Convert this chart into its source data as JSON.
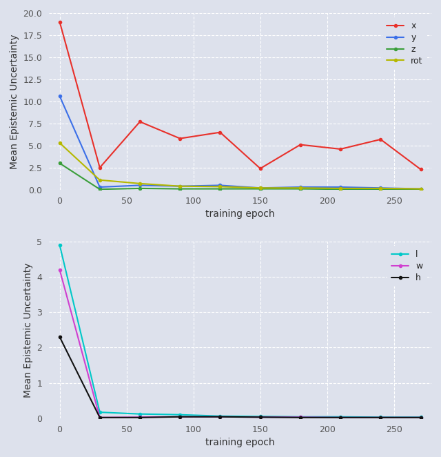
{
  "top": {
    "epochs": [
      0,
      30,
      60,
      90,
      120,
      150,
      180,
      210,
      240,
      270
    ],
    "x": [
      19.0,
      2.5,
      7.7,
      5.8,
      6.5,
      2.4,
      5.1,
      4.6,
      5.7,
      2.3
    ],
    "y": [
      10.6,
      0.3,
      0.5,
      0.4,
      0.5,
      0.2,
      0.3,
      0.3,
      0.2,
      0.1
    ],
    "z": [
      3.0,
      0.05,
      0.15,
      0.1,
      0.1,
      0.1,
      0.1,
      0.05,
      0.05,
      0.05
    ],
    "rot": [
      5.3,
      1.1,
      0.7,
      0.4,
      0.35,
      0.2,
      0.2,
      0.15,
      0.15,
      0.1
    ],
    "x_color": "#e8302a",
    "y_color": "#3b6fe8",
    "z_color": "#3a9e3a",
    "rot_color": "#b5b800",
    "ylabel": "Mean Epistemic Uncertainty",
    "xlabel": "training epoch",
    "ylim": [
      0,
      20
    ],
    "yticks": [
      0.0,
      2.5,
      5.0,
      7.5,
      10.0,
      12.5,
      15.0,
      17.5,
      20.0
    ],
    "xticks": [
      0,
      50,
      100,
      150,
      200,
      250
    ]
  },
  "bottom": {
    "epochs": [
      0,
      30,
      60,
      90,
      120,
      150,
      180,
      210,
      240,
      270
    ],
    "l": [
      4.9,
      0.17,
      0.12,
      0.1,
      0.06,
      0.05,
      0.04,
      0.04,
      0.03,
      0.03
    ],
    "w": [
      4.2,
      0.02,
      0.03,
      0.04,
      0.04,
      0.03,
      0.03,
      0.02,
      0.02,
      0.02
    ],
    "h": [
      2.3,
      0.02,
      0.02,
      0.04,
      0.04,
      0.03,
      0.02,
      0.02,
      0.02,
      0.02
    ],
    "l_color": "#00c8c8",
    "w_color": "#d040d0",
    "h_color": "#111111",
    "ylabel": "Mean Epistemic Uncertainty",
    "xlabel": "training epoch",
    "ylim": [
      0,
      5
    ],
    "yticks": [
      0,
      1,
      2,
      3,
      4,
      5
    ],
    "xticks": [
      0,
      50,
      100,
      150,
      200,
      250
    ]
  },
  "bg_color": "#dde1ec",
  "grid_color": "#ffffff",
  "marker": "o",
  "markersize": 4,
  "linewidth": 1.5,
  "tick_fontsize": 9,
  "label_fontsize": 10
}
